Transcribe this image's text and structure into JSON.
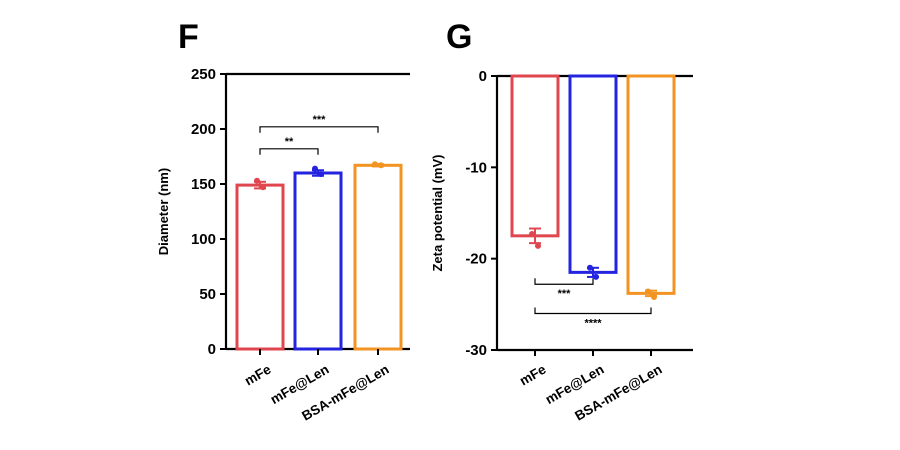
{
  "panels": {
    "F": {
      "letter": "F"
    },
    "G": {
      "letter": "G"
    }
  },
  "chart_data": [
    {
      "panel": "F",
      "type": "bar",
      "ylabel": "Diameter (nm)",
      "ylim": [
        0,
        250
      ],
      "yticks": [
        0,
        50,
        100,
        150,
        200,
        250
      ],
      "categories": [
        "mFe",
        "mFe@Len",
        "BSA-mFe@Len"
      ],
      "values": [
        149,
        160,
        167
      ],
      "errors": [
        3,
        2.5,
        1
      ],
      "points": [
        [
          153,
          147
        ],
        [
          164,
          159
        ],
        [
          168,
          167
        ]
      ],
      "colors": [
        "#e0464e",
        "#2323e0",
        "#f29322"
      ],
      "significance": [
        {
          "from": 0,
          "to": 1,
          "label": "**",
          "y": 182
        },
        {
          "from": 0,
          "to": 2,
          "label": "***",
          "y": 202
        }
      ]
    },
    {
      "panel": "G",
      "type": "bar",
      "ylabel": "Zeta potential (mV)",
      "ylim": [
        -30,
        0
      ],
      "yticks": [
        0,
        -10,
        -20,
        -30
      ],
      "categories": [
        "mFe",
        "mFe@Len",
        "BSA-mFe@Len"
      ],
      "values": [
        -17.5,
        -21.5,
        -23.8
      ],
      "errors": [
        0.8,
        0.5,
        0.3
      ],
      "points": [
        [
          -17.3,
          -18.6
        ],
        [
          -21.0,
          -22.0
        ],
        [
          -23.6,
          -24.2
        ]
      ],
      "colors": [
        "#e0464e",
        "#2323e0",
        "#f29322"
      ],
      "significance": [
        {
          "from": 0,
          "to": 1,
          "label": "***",
          "y": -22.8
        },
        {
          "from": 0,
          "to": 2,
          "label": "****",
          "y": -26.0
        }
      ]
    }
  ]
}
